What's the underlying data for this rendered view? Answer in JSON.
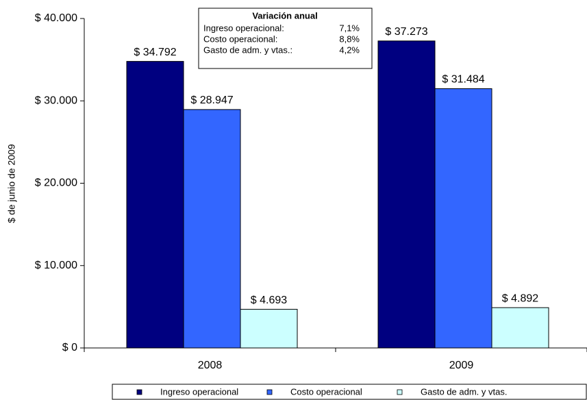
{
  "chart_data": {
    "type": "bar",
    "y_label": "$ de junio de 2009",
    "categories": [
      "2008",
      "2009"
    ],
    "series": [
      {
        "name": "Ingreso operacional",
        "color": "#000080",
        "values": [
          34792,
          37273
        ],
        "value_labels": [
          "$ 34.792",
          "$ 37.273"
        ]
      },
      {
        "name": "Costo operacional",
        "color": "#3366ff",
        "values": [
          28947,
          31484
        ],
        "value_labels": [
          "$ 28.947",
          "$ 31.484"
        ]
      },
      {
        "name": "Gasto de adm. y vtas.",
        "color": "#ccffff",
        "values": [
          4693,
          4892
        ],
        "value_labels": [
          "$ 4.693",
          "$ 4.892"
        ]
      }
    ],
    "ylim": [
      0,
      40000
    ],
    "yticks": [
      {
        "value": 0,
        "label": "$ 0"
      },
      {
        "value": 10000,
        "label": "$ 10.000"
      },
      {
        "value": 20000,
        "label": "$ 20.000"
      },
      {
        "value": 30000,
        "label": "$ 30.000"
      },
      {
        "value": 40000,
        "label": "$ 40.000"
      }
    ],
    "annotation": {
      "title": "Variación anual",
      "rows": [
        [
          "Ingreso operacional:",
          "7,1%"
        ],
        [
          "Costo operacional:",
          "8,8%"
        ],
        [
          "Gasto de adm. y vtas.:",
          "4,2%"
        ]
      ]
    },
    "legend": "bottom"
  }
}
